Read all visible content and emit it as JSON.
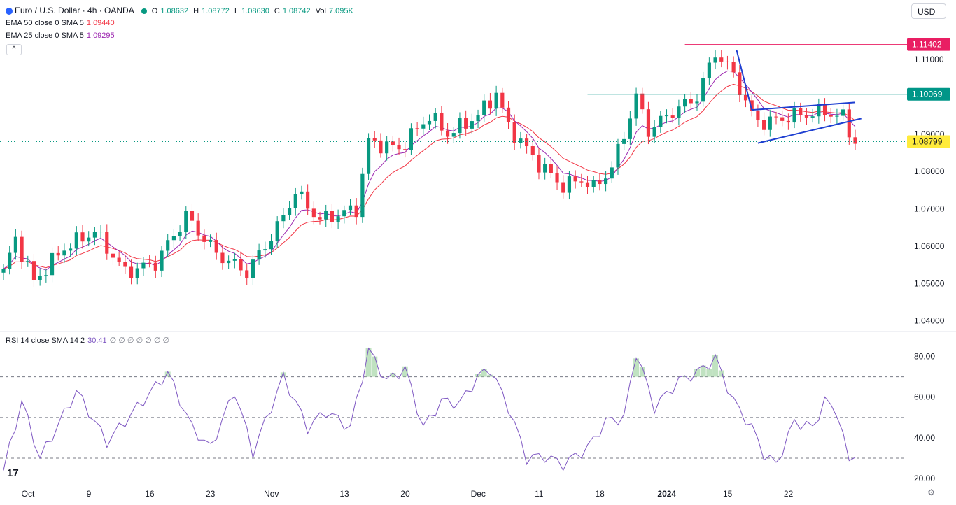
{
  "header": {
    "symbol": "Euro / U.S. Dollar · 4h · OANDA",
    "o_label": "O",
    "o": "1.08632",
    "h_label": "H",
    "h": "1.08772",
    "l_label": "L",
    "l": "1.08630",
    "c_label": "C",
    "c": "1.08742",
    "vol_label": "Vol",
    "vol": "7.095K",
    "ema50_label": "EMA 50 close 0 SMA 5",
    "ema50_value": "1.09440",
    "ema25_label": "EMA 25 close 0 SMA 5",
    "ema25_value": "1.09295",
    "currency": "USD",
    "collapse_glyph": "^"
  },
  "rsi_legend": {
    "label": "RSI 14 close SMA 14 2",
    "value": "30.41",
    "extras": "∅ ∅ ∅ ∅ ∅ ∅ ∅"
  },
  "footer": {
    "logo": "17",
    "settings_icon": "settings-icon",
    "settings_glyph": "⚙"
  },
  "colors": {
    "up": "#089981",
    "down": "#f23645",
    "ema50": "#f23645",
    "ema25": "#9c27b0",
    "rsi": "#7e57c2",
    "resistance": "#e91e63",
    "support": "#009688",
    "trend": "#1e3fd1",
    "price": "#ffeb3b"
  },
  "chart_data": [
    {
      "type": "candlestick",
      "title": "Euro / U.S. Dollar · 4h · OANDA",
      "y_axis_ticks": [
        "1.11000",
        "1.10000",
        "1.09000",
        "1.08000",
        "1.07000",
        "1.06000",
        "1.05000",
        "1.04000"
      ],
      "ylim": [
        1.0375,
        1.1175
      ],
      "x_axis_ticks": [
        "Oct",
        "9",
        "16",
        "23",
        "Nov",
        "13",
        "20",
        "Dec",
        "11",
        "18",
        "2024",
        "15",
        "22"
      ],
      "close_path_anchors": [
        {
          "t": 0,
          "v": 1.053
        },
        {
          "t": 2,
          "v": 1.062
        },
        {
          "t": 5,
          "v": 1.0505
        },
        {
          "t": 10,
          "v": 1.0595
        },
        {
          "t": 15,
          "v": 1.064
        },
        {
          "t": 20,
          "v": 1.053
        },
        {
          "t": 25,
          "v": 1.0555
        },
        {
          "t": 30,
          "v": 1.068
        },
        {
          "t": 35,
          "v": 1.058
        },
        {
          "t": 40,
          "v": 1.053
        },
        {
          "t": 45,
          "v": 1.065
        },
        {
          "t": 48,
          "v": 1.0745
        },
        {
          "t": 52,
          "v": 1.067
        },
        {
          "t": 55,
          "v": 1.0685
        },
        {
          "t": 58,
          "v": 1.07
        },
        {
          "t": 60,
          "v": 1.088
        },
        {
          "t": 65,
          "v": 1.086
        },
        {
          "t": 70,
          "v": 1.095
        },
        {
          "t": 73,
          "v": 1.09
        },
        {
          "t": 78,
          "v": 1.095
        },
        {
          "t": 81,
          "v": 1.101
        },
        {
          "t": 83,
          "v": 1.092
        },
        {
          "t": 88,
          "v": 1.082
        },
        {
          "t": 92,
          "v": 1.076
        },
        {
          "t": 95,
          "v": 1.078
        },
        {
          "t": 97,
          "v": 1.0755
        },
        {
          "t": 100,
          "v": 1.081
        },
        {
          "t": 102,
          "v": 1.09
        },
        {
          "t": 104,
          "v": 1.1
        },
        {
          "t": 106,
          "v": 1.091
        },
        {
          "t": 110,
          "v": 1.096
        },
        {
          "t": 114,
          "v": 1.1
        },
        {
          "t": 117,
          "v": 1.112
        },
        {
          "t": 120,
          "v": 1.106
        },
        {
          "t": 123,
          "v": 1.095
        },
        {
          "t": 125,
          "v": 1.093
        },
        {
          "t": 130,
          "v": 1.095
        },
        {
          "t": 135,
          "v": 1.096
        },
        {
          "t": 138,
          "v": 1.0945
        },
        {
          "t": 140,
          "v": 1.0874
        }
      ],
      "candle_count": 141,
      "ema_periods": [
        50,
        25
      ],
      "price_labels": [
        {
          "value": "1.11402",
          "role": "resistance"
        },
        {
          "value": "1.10069",
          "role": "support"
        },
        {
          "value": "1.08799",
          "role": "price"
        }
      ],
      "horizontal_lines": [
        {
          "value": 1.11402,
          "role": "resistance",
          "from_t": 112
        },
        {
          "value": 1.10069,
          "role": "support",
          "from_t": 96
        },
        {
          "value": 1.08799,
          "role": "price",
          "style": "dotted"
        }
      ],
      "trend_lines": [
        {
          "from": {
            "t": 120.5,
            "v": 1.1125
          },
          "to": {
            "t": 123,
            "v": 1.0965
          }
        },
        {
          "from": {
            "t": 123,
            "v": 1.0965
          },
          "to": {
            "t": 140,
            "v": 1.0985
          }
        },
        {
          "from": {
            "t": 124,
            "v": 1.0876
          },
          "to": {
            "t": 141,
            "v": 1.0942
          }
        }
      ]
    },
    {
      "type": "line",
      "title": "RSI 14 close SMA 14 2",
      "y_axis_ticks": [
        "80.00",
        "60.00",
        "40.00",
        "20.00"
      ],
      "ylim": [
        18,
        86
      ],
      "levels": [
        70,
        50,
        30
      ],
      "value_anchors": [
        {
          "t": 0,
          "v": 24
        },
        {
          "t": 3,
          "v": 58
        },
        {
          "t": 6,
          "v": 30
        },
        {
          "t": 12,
          "v": 63
        },
        {
          "t": 17,
          "v": 38
        },
        {
          "t": 22,
          "v": 55
        },
        {
          "t": 27,
          "v": 72
        },
        {
          "t": 31,
          "v": 45
        },
        {
          "t": 34,
          "v": 35
        },
        {
          "t": 38,
          "v": 63
        },
        {
          "t": 41,
          "v": 33
        },
        {
          "t": 46,
          "v": 70
        },
        {
          "t": 50,
          "v": 45
        },
        {
          "t": 53,
          "v": 53
        },
        {
          "t": 57,
          "v": 45
        },
        {
          "t": 60,
          "v": 83
        },
        {
          "t": 63,
          "v": 68
        },
        {
          "t": 66,
          "v": 74
        },
        {
          "t": 69,
          "v": 45
        },
        {
          "t": 72,
          "v": 58
        },
        {
          "t": 75,
          "v": 57
        },
        {
          "t": 78,
          "v": 70
        },
        {
          "t": 80,
          "v": 74
        },
        {
          "t": 83,
          "v": 55
        },
        {
          "t": 86,
          "v": 30
        },
        {
          "t": 89,
          "v": 31
        },
        {
          "t": 92,
          "v": 27
        },
        {
          "t": 96,
          "v": 35
        },
        {
          "t": 99,
          "v": 48
        },
        {
          "t": 102,
          "v": 50
        },
        {
          "t": 104,
          "v": 82
        },
        {
          "t": 107,
          "v": 55
        },
        {
          "t": 111,
          "v": 68
        },
        {
          "t": 114,
          "v": 72
        },
        {
          "t": 117,
          "v": 79
        },
        {
          "t": 120,
          "v": 58
        },
        {
          "t": 123,
          "v": 45
        },
        {
          "t": 125,
          "v": 32
        },
        {
          "t": 127,
          "v": 27
        },
        {
          "t": 130,
          "v": 48
        },
        {
          "t": 133,
          "v": 45
        },
        {
          "t": 135,
          "v": 58
        },
        {
          "t": 137,
          "v": 53
        },
        {
          "t": 139,
          "v": 28
        },
        {
          "t": 140,
          "v": 30.41
        }
      ]
    }
  ]
}
